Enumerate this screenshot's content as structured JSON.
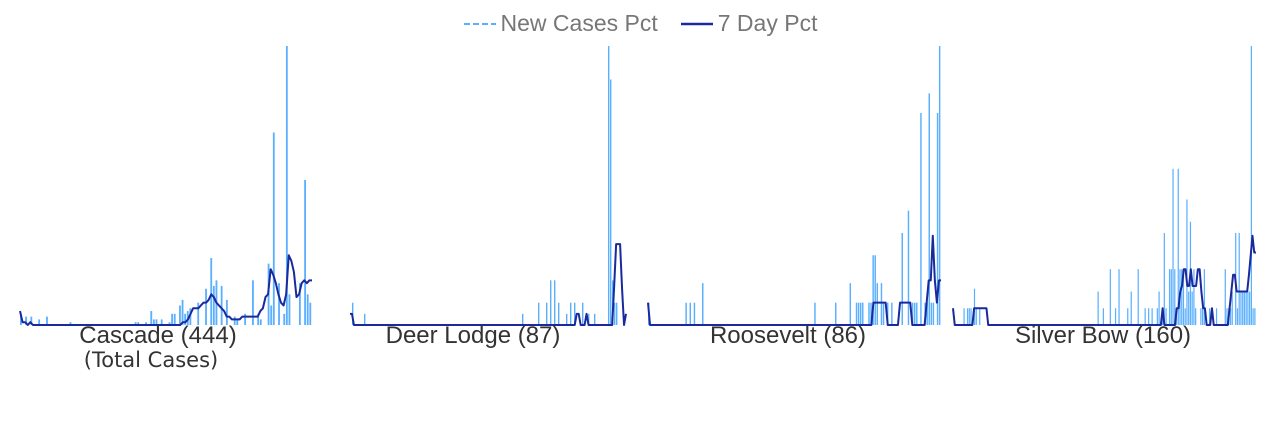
{
  "legend": {
    "new_cases_label": "New Cases Pct",
    "seven_day_label": "7 Day Pct",
    "new_cases_color": "#5aafff",
    "seven_day_color": "#1a2a9c"
  },
  "chart_data": [
    {
      "type": "bar",
      "title": "Cascade (444)",
      "subtitle": "(Total Cases)",
      "ylim": [
        0,
        100
      ],
      "grid": false,
      "legend_position": "top-center",
      "new_cases": [
        4,
        0,
        3,
        0,
        3,
        0,
        0,
        2,
        0,
        0,
        3,
        0,
        0,
        0,
        0,
        0,
        0,
        0,
        0,
        1,
        0,
        0,
        0,
        0,
        0,
        0,
        0,
        0,
        0,
        0,
        0,
        0,
        0,
        0,
        0,
        0,
        0,
        0,
        0,
        0,
        0,
        0,
        0,
        0,
        1,
        1,
        0,
        0,
        1,
        0,
        5,
        2,
        2,
        0,
        2,
        0,
        0,
        1,
        4,
        4,
        0,
        7,
        9,
        4,
        5,
        6,
        0,
        0,
        8,
        0,
        0,
        13,
        0,
        24,
        14,
        16,
        0,
        14,
        0,
        9,
        0,
        0,
        3,
        2,
        0,
        0,
        4,
        0,
        0,
        16,
        0,
        4,
        2,
        0,
        0,
        22,
        7,
        69,
        0,
        15,
        0,
        4,
        100,
        11,
        0,
        0,
        0,
        15,
        0,
        52,
        11,
        8
      ],
      "seven_day": [
        5,
        1,
        1,
        0,
        1,
        0,
        0,
        0,
        0,
        0,
        0,
        0,
        0,
        0,
        0,
        0,
        0,
        0,
        0,
        0,
        0,
        0,
        0,
        0,
        0,
        0,
        0,
        0,
        0,
        0,
        0,
        0,
        0,
        0,
        0,
        0,
        0,
        0,
        0,
        0,
        0,
        0,
        0,
        0,
        0,
        0,
        0,
        0,
        0,
        0,
        0,
        0,
        0,
        0,
        0,
        0,
        0,
        0,
        0,
        0,
        0,
        0,
        0,
        1,
        1,
        2,
        4,
        6,
        6,
        6,
        7,
        8,
        8,
        9,
        11,
        10,
        8,
        7,
        6,
        5,
        3,
        3,
        2,
        2,
        2,
        2,
        3,
        3,
        3,
        3,
        3,
        3,
        3,
        5,
        6,
        10,
        11,
        20,
        18,
        15,
        11,
        8,
        7,
        11,
        25,
        23,
        19,
        10,
        11,
        15,
        16,
        15,
        16,
        16
      ]
    },
    {
      "type": "bar",
      "title": "Deer Lodge (87)",
      "ylim": [
        0,
        100
      ],
      "grid": false,
      "new_cases": [
        0,
        8,
        0,
        0,
        0,
        0,
        0,
        4,
        0,
        0,
        0,
        0,
        0,
        0,
        0,
        0,
        0,
        0,
        0,
        0,
        0,
        0,
        0,
        0,
        0,
        0,
        0,
        0,
        0,
        0,
        0,
        0,
        0,
        0,
        0,
        0,
        0,
        0,
        0,
        0,
        0,
        0,
        0,
        0,
        0,
        0,
        0,
        0,
        0,
        0,
        0,
        0,
        0,
        0,
        0,
        0,
        0,
        0,
        0,
        0,
        0,
        0,
        0,
        0,
        0,
        0,
        0,
        0,
        0,
        0,
        0,
        0,
        0,
        0,
        0,
        0,
        0,
        0,
        0,
        0,
        0,
        0,
        0,
        0,
        0,
        0,
        4,
        0,
        0,
        0,
        0,
        0,
        0,
        0,
        8,
        0,
        0,
        0,
        8,
        0,
        16,
        0,
        16,
        0,
        8,
        0,
        0,
        0,
        4,
        0,
        8,
        0,
        8,
        0,
        0,
        0,
        8,
        0,
        0,
        4,
        0,
        0,
        4,
        0,
        0,
        0,
        0,
        0,
        0,
        100,
        88,
        16,
        8,
        8,
        0,
        0,
        0,
        0
      ],
      "seven_day": [
        4,
        4,
        0,
        0,
        0,
        0,
        0,
        0,
        0,
        0,
        0,
        0,
        0,
        0,
        0,
        0,
        0,
        0,
        0,
        0,
        0,
        0,
        0,
        0,
        0,
        0,
        0,
        0,
        0,
        0,
        0,
        0,
        0,
        0,
        0,
        0,
        0,
        0,
        0,
        0,
        0,
        0,
        0,
        0,
        0,
        0,
        0,
        0,
        0,
        0,
        0,
        0,
        0,
        0,
        0,
        0,
        0,
        0,
        0,
        0,
        0,
        0,
        0,
        0,
        0,
        0,
        0,
        0,
        0,
        0,
        0,
        0,
        0,
        0,
        0,
        0,
        0,
        0,
        0,
        0,
        0,
        0,
        0,
        0,
        0,
        0,
        0,
        0,
        0,
        0,
        0,
        0,
        0,
        0,
        0,
        0,
        0,
        0,
        0,
        0,
        0,
        0,
        0,
        0,
        0,
        0,
        0,
        0,
        0,
        0,
        0,
        0,
        0,
        0,
        0,
        4,
        4,
        0,
        0,
        0,
        4,
        0,
        0,
        0,
        0,
        0,
        0,
        0,
        0,
        0,
        0,
        0,
        0,
        0,
        14,
        29,
        29,
        29,
        13,
        0,
        4
      ]
    },
    {
      "type": "bar",
      "title": "Roosevelt (86)",
      "ylim": [
        0,
        100
      ],
      "grid": false,
      "new_cases": [
        8,
        0,
        0,
        0,
        0,
        0,
        0,
        0,
        0,
        0,
        0,
        0,
        0,
        0,
        0,
        0,
        0,
        0,
        8,
        0,
        8,
        0,
        8,
        0,
        0,
        0,
        15,
        0,
        0,
        0,
        0,
        0,
        0,
        0,
        0,
        0,
        0,
        0,
        0,
        0,
        0,
        0,
        0,
        0,
        0,
        0,
        0,
        0,
        0,
        0,
        0,
        0,
        0,
        0,
        0,
        0,
        0,
        0,
        0,
        0,
        0,
        0,
        0,
        0,
        0,
        0,
        0,
        0,
        0,
        0,
        0,
        0,
        0,
        0,
        0,
        0,
        0,
        0,
        0,
        0,
        8,
        0,
        0,
        0,
        0,
        0,
        0,
        0,
        0,
        0,
        8,
        0,
        0,
        0,
        0,
        0,
        0,
        15,
        0,
        0,
        8,
        8,
        8,
        8,
        0,
        0,
        8,
        8,
        25,
        25,
        15,
        0,
        15,
        8,
        0,
        8,
        0,
        8,
        0,
        0,
        0,
        0,
        33,
        0,
        0,
        41,
        0,
        8,
        8,
        8,
        0,
        76,
        0,
        8,
        8,
        83,
        8,
        8,
        0,
        76,
        100
      ],
      "seven_day": [
        8,
        0,
        0,
        0,
        0,
        0,
        0,
        0,
        0,
        0,
        0,
        0,
        0,
        0,
        0,
        0,
        0,
        0,
        0,
        0,
        0,
        0,
        0,
        0,
        0,
        0,
        0,
        0,
        0,
        0,
        0,
        0,
        0,
        0,
        0,
        0,
        0,
        0,
        0,
        0,
        0,
        0,
        0,
        0,
        0,
        0,
        0,
        0,
        0,
        0,
        0,
        0,
        0,
        0,
        0,
        0,
        0,
        0,
        0,
        0,
        0,
        0,
        0,
        0,
        0,
        0,
        0,
        0,
        0,
        0,
        0,
        0,
        0,
        0,
        0,
        0,
        0,
        0,
        0,
        0,
        0,
        0,
        0,
        0,
        0,
        0,
        0,
        0,
        0,
        0,
        0,
        0,
        0,
        0,
        0,
        0,
        0,
        0,
        0,
        0,
        0,
        0,
        0,
        0,
        0,
        0,
        0,
        0,
        0,
        0,
        8,
        8,
        8,
        8,
        8,
        8,
        8,
        0,
        0,
        0,
        0,
        0,
        0,
        8,
        8,
        8,
        8,
        8,
        8,
        0,
        0,
        0,
        0,
        0,
        0,
        0,
        8,
        16,
        16,
        32,
        16,
        8,
        16,
        16
      ]
    },
    {
      "type": "bar",
      "title": "Silver Bow (160)",
      "ylim": [
        0,
        100
      ],
      "grid": false,
      "new_cases": [
        0,
        0,
        0,
        0,
        0,
        0,
        6,
        0,
        6,
        6,
        6,
        0,
        13,
        6,
        0,
        6,
        0,
        0,
        0,
        0,
        0,
        0,
        0,
        0,
        0,
        0,
        0,
        0,
        0,
        0,
        0,
        0,
        0,
        0,
        0,
        0,
        0,
        0,
        0,
        0,
        0,
        0,
        0,
        0,
        0,
        0,
        0,
        0,
        0,
        0,
        0,
        0,
        0,
        0,
        0,
        0,
        0,
        0,
        0,
        0,
        0,
        0,
        0,
        0,
        0,
        0,
        0,
        0,
        0,
        0,
        0,
        0,
        0,
        0,
        0,
        0,
        0,
        0,
        0,
        0,
        0,
        0,
        0,
        12,
        0,
        0,
        6,
        0,
        0,
        0,
        20,
        0,
        0,
        6,
        0,
        20,
        0,
        0,
        0,
        0,
        6,
        0,
        12,
        0,
        0,
        0,
        20,
        0,
        0,
        0,
        6,
        0,
        6,
        0,
        6,
        0,
        0,
        6,
        12,
        0,
        6,
        33,
        6,
        0,
        20,
        20,
        56,
        20,
        6,
        56,
        20,
        20,
        20,
        6,
        45,
        12,
        37,
        12,
        20,
        6,
        0,
        0,
        6,
        6,
        20,
        0,
        0,
        6,
        0,
        0,
        0,
        6,
        0,
        0,
        0,
        0,
        20,
        6,
        6,
        6,
        12,
        0,
        33,
        6,
        33,
        12,
        12,
        12,
        12,
        12,
        12,
        100,
        6,
        6
      ],
      "seven_day": [
        6,
        0,
        0,
        0,
        0,
        0,
        0,
        0,
        0,
        0,
        0,
        0,
        6,
        6,
        6,
        6,
        6,
        6,
        6,
        6,
        0,
        0,
        0,
        0,
        0,
        0,
        0,
        0,
        0,
        0,
        0,
        0,
        0,
        0,
        0,
        0,
        0,
        0,
        0,
        0,
        0,
        0,
        0,
        0,
        0,
        0,
        0,
        0,
        0,
        0,
        0,
        0,
        0,
        0,
        0,
        0,
        0,
        0,
        0,
        0,
        0,
        0,
        0,
        0,
        0,
        0,
        0,
        0,
        0,
        0,
        0,
        0,
        0,
        0,
        0,
        0,
        0,
        0,
        0,
        0,
        0,
        0,
        0,
        0,
        0,
        0,
        0,
        0,
        0,
        0,
        0,
        0,
        0,
        0,
        0,
        0,
        0,
        0,
        0,
        0,
        0,
        0,
        0,
        0,
        0,
        0,
        0,
        0,
        0,
        0,
        0,
        0,
        0,
        0,
        0,
        0,
        0,
        0,
        0,
        6,
        0,
        0,
        0,
        0,
        0,
        0,
        0,
        6,
        6,
        12,
        14,
        20,
        20,
        14,
        14,
        20,
        14,
        14,
        14,
        20,
        20,
        12,
        6,
        6,
        0,
        0,
        0,
        6,
        0,
        0,
        0,
        0,
        0,
        0,
        0,
        0,
        0,
        6,
        12,
        18,
        18,
        12,
        12,
        12,
        12,
        12,
        12,
        12,
        18,
        25,
        32,
        26,
        26
      ]
    }
  ]
}
